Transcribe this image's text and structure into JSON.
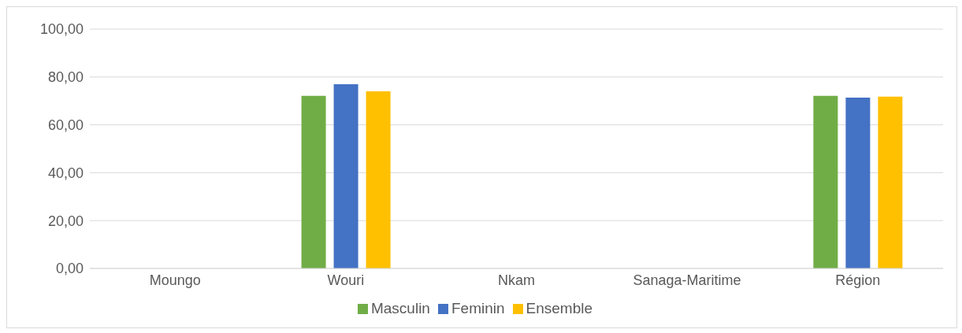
{
  "chart_data": {
    "type": "bar",
    "categories": [
      "Moungo",
      "Wouri",
      "Nkam",
      "Sanaga-Maritime",
      "Région"
    ],
    "series": [
      {
        "name": "Masculin",
        "color": "#70ad47",
        "values": [
          null,
          72.1,
          null,
          null,
          72.1
        ]
      },
      {
        "name": "Feminin",
        "color": "#4472c4",
        "values": [
          null,
          77.0,
          null,
          null,
          71.4
        ]
      },
      {
        "name": "Ensemble",
        "color": "#ffc000",
        "values": [
          null,
          74.0,
          null,
          null,
          71.8
        ]
      }
    ],
    "ylim": [
      0,
      100
    ],
    "yticks": [
      {
        "value": 0,
        "label": "0,00"
      },
      {
        "value": 20,
        "label": "20,00"
      },
      {
        "value": 40,
        "label": "40,00"
      },
      {
        "value": 60,
        "label": "60,00"
      },
      {
        "value": 80,
        "label": "80,00"
      },
      {
        "value": 100,
        "label": "100,00"
      }
    ],
    "grid": "y",
    "legend": "bottom"
  }
}
